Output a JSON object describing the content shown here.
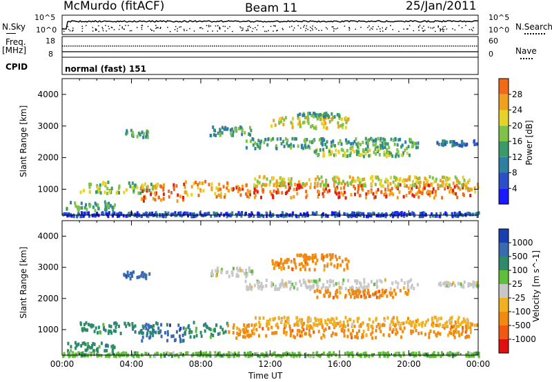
{
  "header": {
    "station": "McMurdo (fitACF)",
    "beam": "Beam 11",
    "date": "25/Jan/2011"
  },
  "top_panels": {
    "nsky_label": "N.Sky",
    "nsky_ticks": [
      "10^5",
      "10^0"
    ],
    "nsearch_label": "N.Search",
    "nsearch_ticks": [
      "10^5",
      "10^0"
    ],
    "freq_label": "Freq.",
    "freq_unit": "[MHz]",
    "freq_ticks": [
      "18",
      "8"
    ],
    "nave_label": "Nave",
    "nave_ticks": [
      "60",
      "0"
    ],
    "cpid_label": "CPID",
    "cpid_value": "normal (fast) 151"
  },
  "colors": {
    "power": [
      "#1a1aff",
      "#2a4fc8",
      "#2e7fa0",
      "#3a9a6a",
      "#7fc24a",
      "#e6d22a",
      "#f0a020",
      "#f06a18",
      "#e02010"
    ],
    "velocity": [
      "#1a3fb0",
      "#3a6ab0",
      "#2e8a6a",
      "#5fbe3a",
      "#c8c8c8",
      "#f0b020",
      "#f08a10",
      "#f05a10",
      "#e01010"
    ]
  },
  "chart_data": [
    {
      "type": "heatmap",
      "title": "",
      "xlabel": "",
      "ylabel": "Slant Range [km]",
      "xlim": [
        "00:00",
        "00:00"
      ],
      "ylim": [
        180,
        4500
      ],
      "x_ticks": [
        "00:00",
        "04:00",
        "08:00",
        "12:00",
        "16:00",
        "20:00",
        "00:00"
      ],
      "y_ticks": [
        1000,
        2000,
        3000,
        4000
      ],
      "colorbar": {
        "label": "Power [dB]",
        "ticks": [
          4,
          8,
          12,
          16,
          20,
          24,
          28
        ],
        "range": [
          0,
          32
        ]
      },
      "grid": false
    },
    {
      "type": "heatmap",
      "title": "",
      "xlabel": "Time UT",
      "ylabel": "Slant Range [km]",
      "xlim": [
        "00:00",
        "00:00"
      ],
      "ylim": [
        180,
        4500
      ],
      "x_ticks": [
        "00:00",
        "04:00",
        "08:00",
        "12:00",
        "16:00",
        "20:00",
        "00:00"
      ],
      "y_ticks": [
        1000,
        2000,
        3000,
        4000
      ],
      "colorbar": {
        "label": "Velocity [m s^-1]",
        "ticks": [
          1000,
          500,
          100,
          25,
          -25,
          -100,
          -500,
          -1000
        ]
      },
      "grid": false
    }
  ]
}
